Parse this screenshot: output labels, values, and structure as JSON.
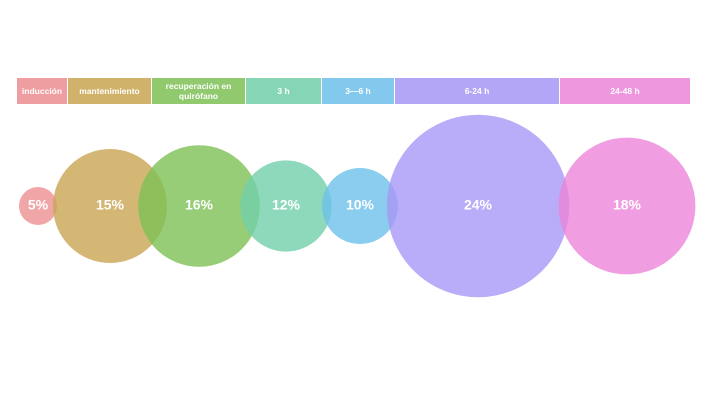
{
  "chart_data": {
    "type": "bubble",
    "categories": [
      "inducción",
      "mantenimiento",
      "recuperación en quirófano",
      "3 h",
      "3—6 h",
      "6-24 h",
      "24-48 h"
    ],
    "values": [
      5,
      15,
      16,
      12,
      10,
      24,
      18
    ],
    "value_labels": [
      "5%",
      "15%",
      "16%",
      "12%",
      "10%",
      "24%",
      "18%"
    ],
    "colors": [
      "#ec8e90",
      "#c9a552",
      "#7dc055",
      "#72d0aa",
      "#6ec0ea",
      "#a797f6",
      "#ec85da"
    ]
  }
}
